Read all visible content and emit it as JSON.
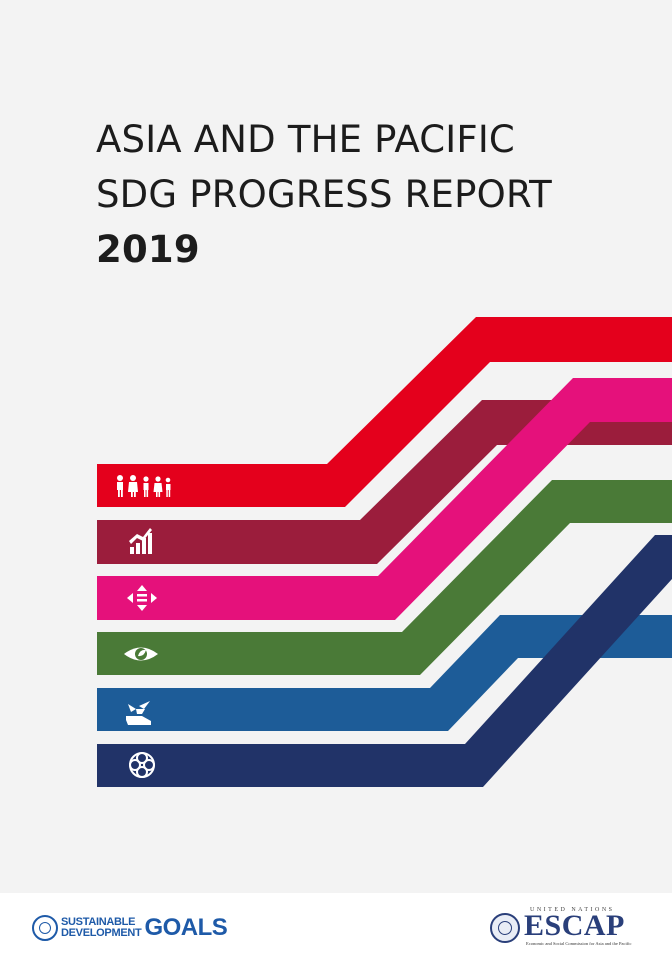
{
  "cover": {
    "title_line1": "ASIA AND THE PACIFIC",
    "title_line2": "SDG PROGRESS REPORT",
    "year": "2019"
  },
  "bands": [
    {
      "color": "#e4001c",
      "icon": "people-icon"
    },
    {
      "color": "#9b1d3c",
      "icon": "growth-chart-icon"
    },
    {
      "color": "#e5117b",
      "icon": "equality-arrows-icon"
    },
    {
      "color": "#4a7a37",
      "icon": "eye-leaf-icon"
    },
    {
      "color": "#1d5c98",
      "icon": "bird-hand-icon"
    },
    {
      "color": "#213368",
      "icon": "partnership-flower-icon"
    }
  ],
  "footer": {
    "sdg_line1": "SUSTAINABLE",
    "sdg_line2": "DEVELOPMENT",
    "sdg_goals": "GOALS",
    "escap_un": "UNITED NATIONS",
    "escap_name": "ESCAP",
    "escap_sub": "Economic and Social Commission for Asia and the Pacific"
  }
}
